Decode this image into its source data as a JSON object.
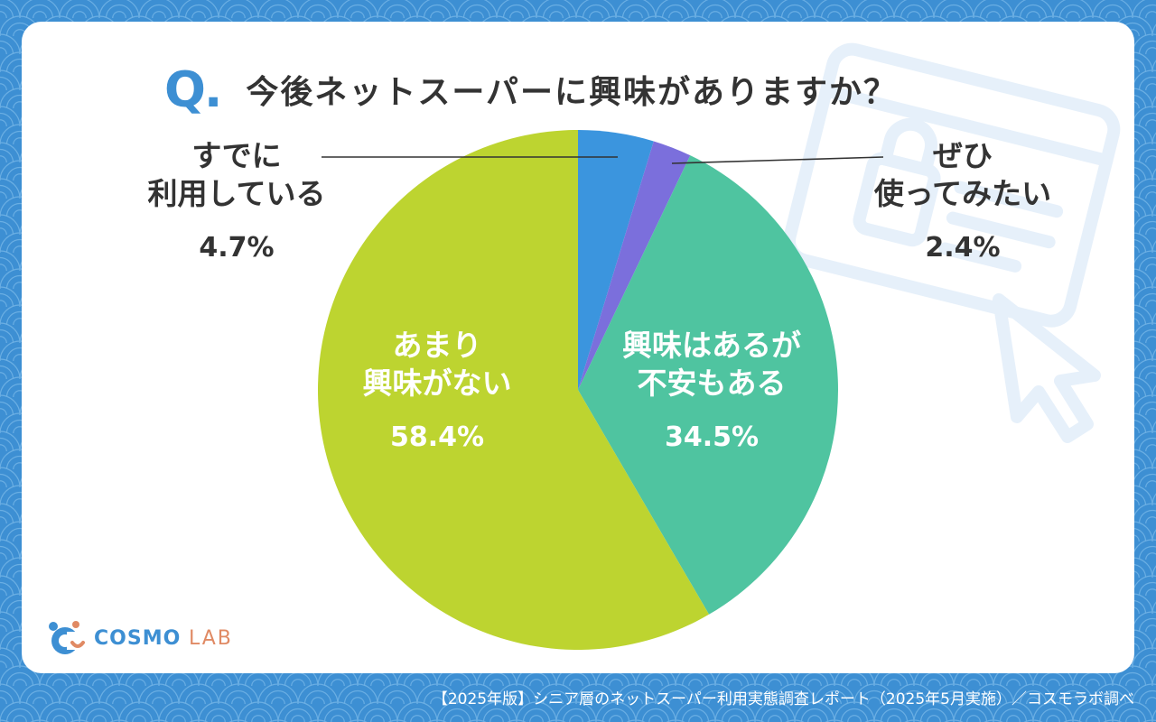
{
  "question": {
    "mark": "Q",
    "dot": ".",
    "text": "今後ネットスーパーに興味がありますか？"
  },
  "chart_data": {
    "type": "pie",
    "start_angle_deg": 0,
    "direction": "clockwise",
    "slices": [
      {
        "key": "already",
        "lines": [
          "すでに",
          "利用している"
        ],
        "value": 4.7,
        "display": "4.7%",
        "color": "#3b95de"
      },
      {
        "key": "want",
        "lines": [
          "ぜひ",
          "使ってみたい"
        ],
        "value": 2.4,
        "display": "2.4%",
        "color": "#7b6fdc"
      },
      {
        "key": "interested",
        "lines": [
          "興味はあるが",
          "不安もある"
        ],
        "value": 34.5,
        "display": "34.5%",
        "color": "#4fc4a0"
      },
      {
        "key": "not",
        "lines": [
          "あまり",
          "興味がない"
        ],
        "value": 58.4,
        "display": "58.4%",
        "color": "#bdd430"
      }
    ],
    "label_colors": {
      "outside": "#333333",
      "inside": "#ffffff"
    }
  },
  "brand": {
    "name_a": "COSMO",
    "name_b": "LAB",
    "color": "#3d8fd3",
    "accent": "#e08a64"
  },
  "footer": {
    "source": "【2025年版】シニア層のネットスーパー利用実態調査レポート（2025年5月実施）／コスモラボ調べ"
  },
  "colors": {
    "background": "#3d8fd3",
    "card": "#ffffff"
  }
}
